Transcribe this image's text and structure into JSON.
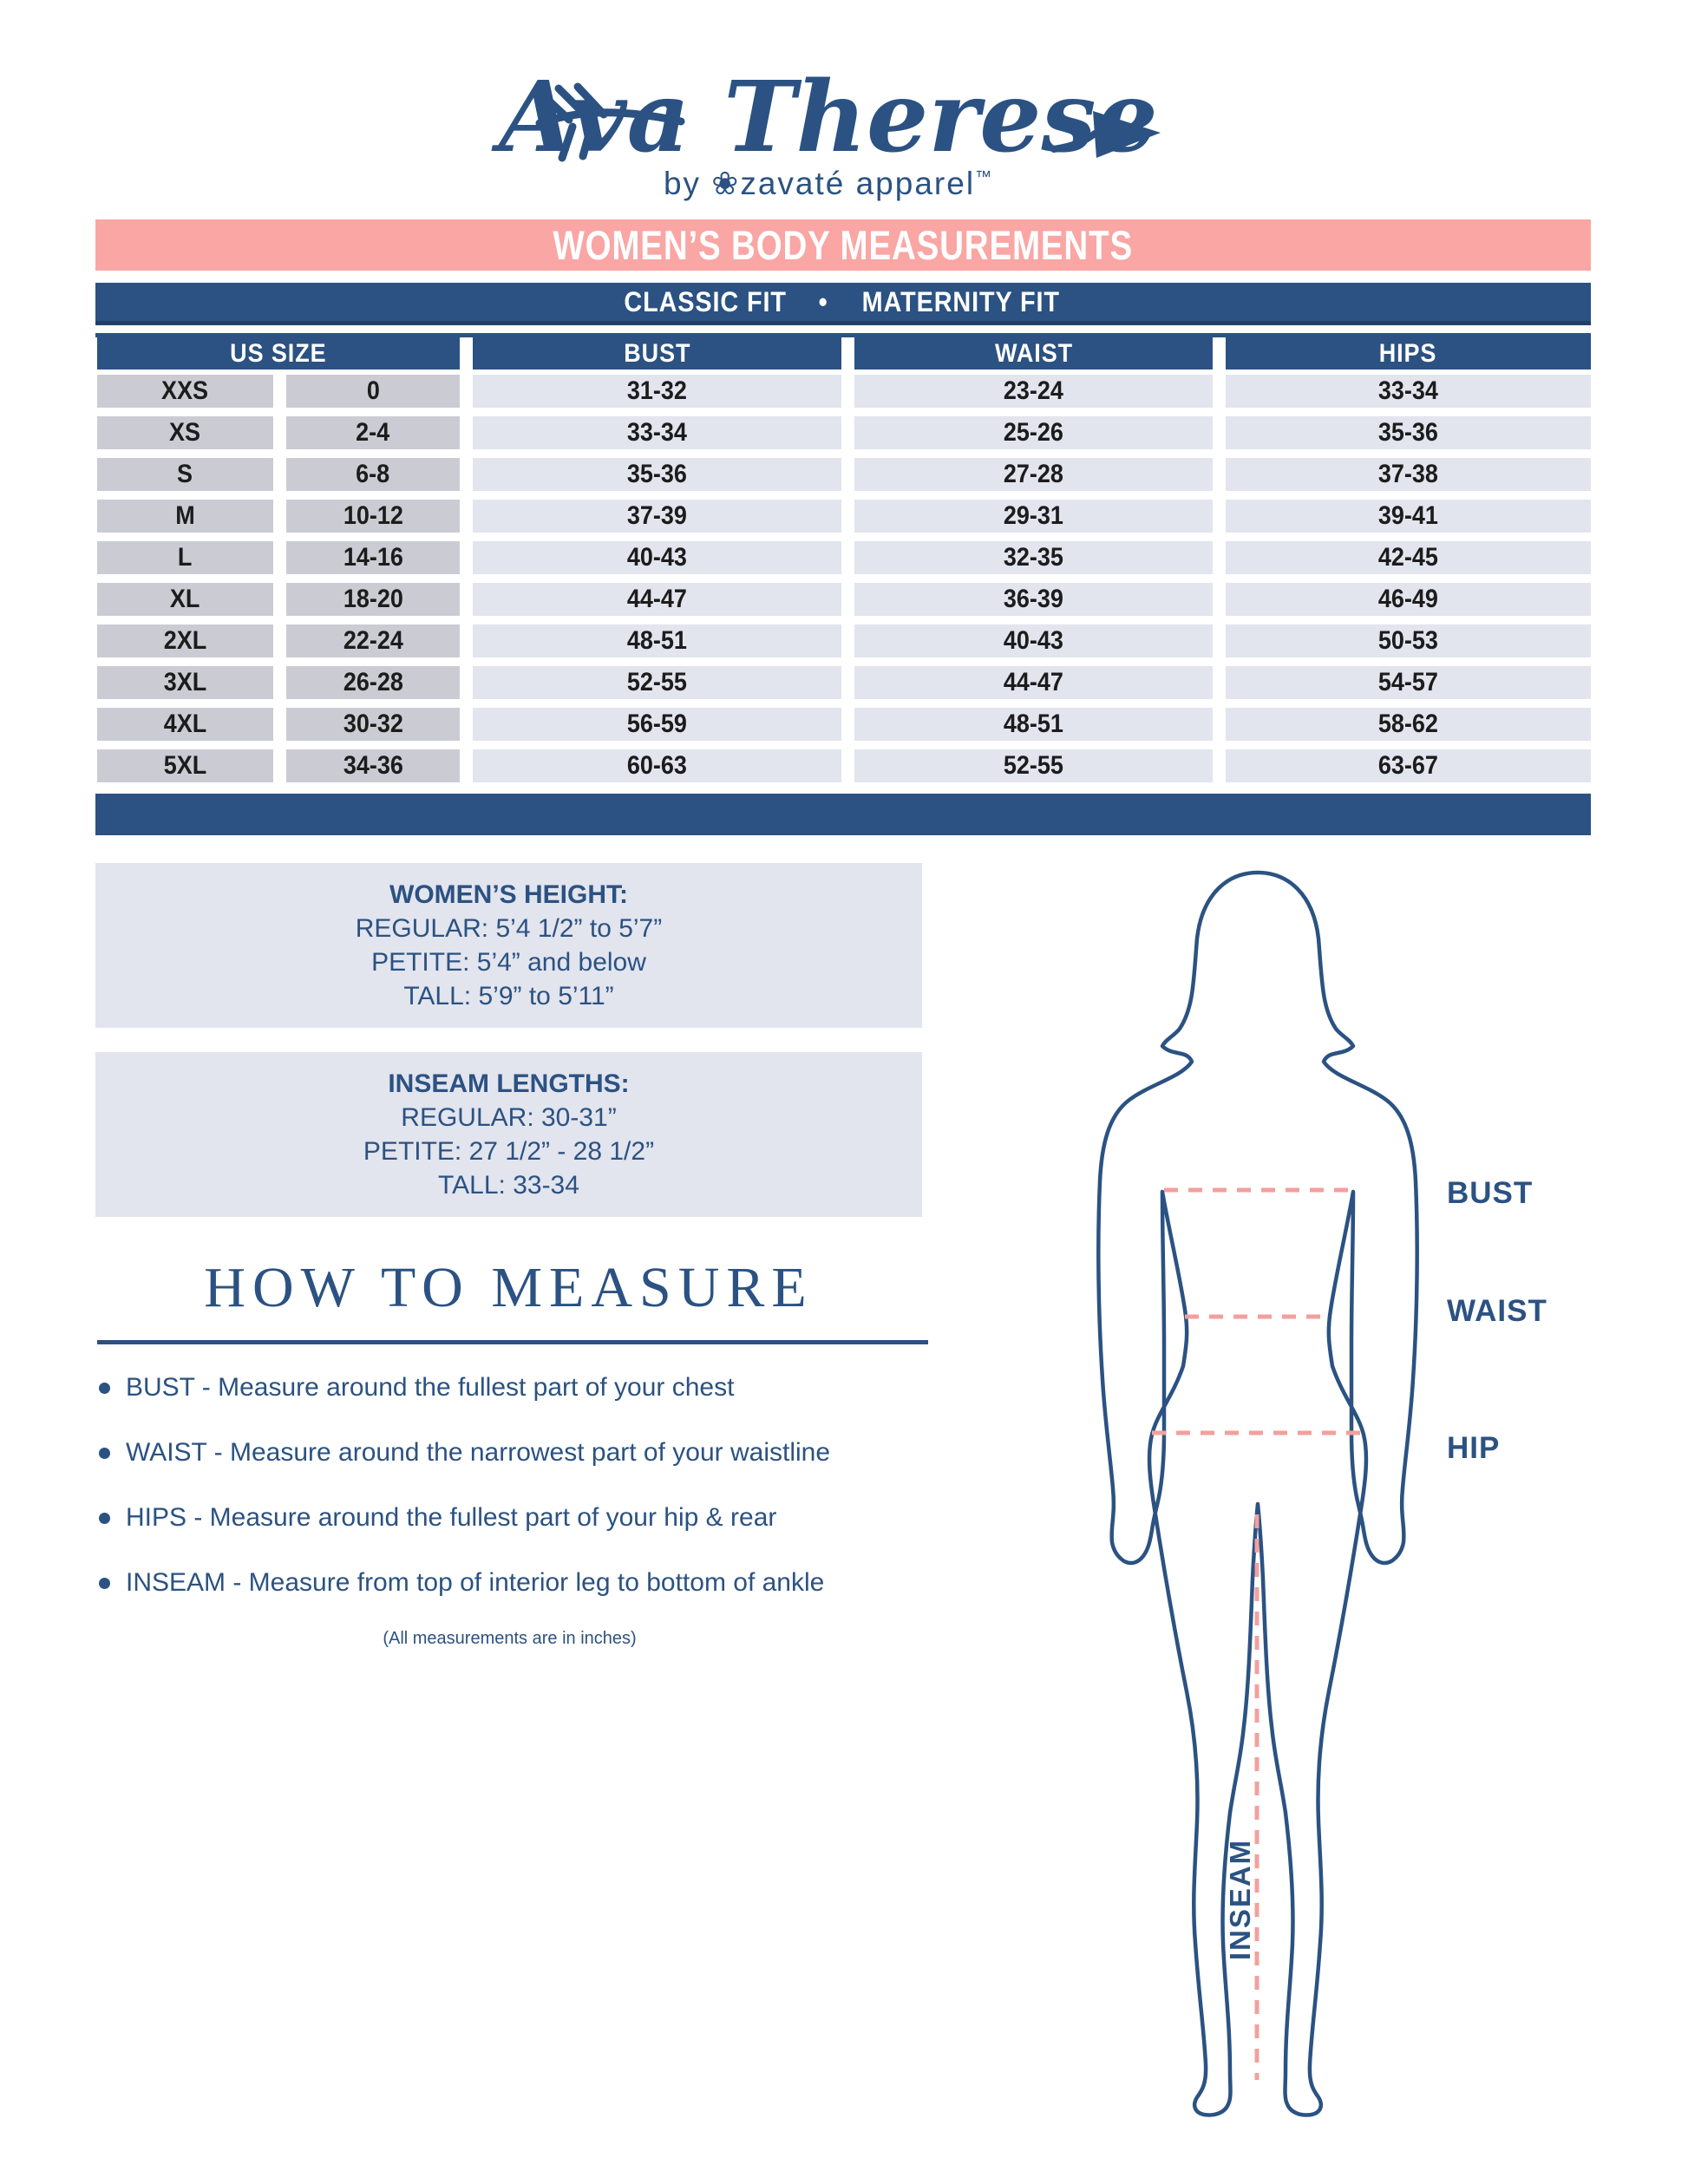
{
  "brand": {
    "name": "Ava Therese",
    "byline": "by",
    "flower": "❀",
    "company": "zavaté apparel",
    "trademark": "™"
  },
  "banner": {
    "title": "WOMEN’S BODY MEASUREMENTS"
  },
  "fit_banner": {
    "left": "CLASSIC FIT",
    "separator": "•",
    "right": "MATERNITY FIT"
  },
  "size_table": {
    "headers": {
      "us_size": "US SIZE",
      "bust": "BUST",
      "waist": "WAIST",
      "hips": "HIPS"
    },
    "rows": [
      {
        "size": "XXS",
        "us": "0",
        "bust": "31-32",
        "waist": "23-24",
        "hips": "33-34"
      },
      {
        "size": "XS",
        "us": "2-4",
        "bust": "33-34",
        "waist": "25-26",
        "hips": "35-36"
      },
      {
        "size": "S",
        "us": "6-8",
        "bust": "35-36",
        "waist": "27-28",
        "hips": "37-38"
      },
      {
        "size": "M",
        "us": "10-12",
        "bust": "37-39",
        "waist": "29-31",
        "hips": "39-41"
      },
      {
        "size": "L",
        "us": "14-16",
        "bust": "40-43",
        "waist": "32-35",
        "hips": "42-45"
      },
      {
        "size": "XL",
        "us": "18-20",
        "bust": "44-47",
        "waist": "36-39",
        "hips": "46-49"
      },
      {
        "size": "2XL",
        "us": "22-24",
        "bust": "48-51",
        "waist": "40-43",
        "hips": "50-53"
      },
      {
        "size": "3XL",
        "us": "26-28",
        "bust": "52-55",
        "waist": "44-47",
        "hips": "54-57"
      },
      {
        "size": "4XL",
        "us": "30-32",
        "bust": "56-59",
        "waist": "48-51",
        "hips": "58-62"
      },
      {
        "size": "5XL",
        "us": "34-36",
        "bust": "60-63",
        "waist": "52-55",
        "hips": "63-67"
      }
    ]
  },
  "height_box": {
    "title": "WOMEN’S HEIGHT:",
    "lines": [
      "REGULAR: 5’4 1/2” to 5’7”",
      "PETITE: 5’4” and below",
      "TALL: 5’9” to 5’11”"
    ]
  },
  "inseam_box": {
    "title": "INSEAM LENGTHS:",
    "lines": [
      "REGULAR: 30-31”",
      "PETITE: 27 1/2” - 28 1/2”",
      "TALL: 33-34"
    ]
  },
  "how_to_measure": {
    "title": "HOW TO MEASURE",
    "bullets": [
      "BUST - Measure around the fullest part of your chest",
      "WAIST - Measure around the narrowest part of your waistline",
      "HIPS - Measure around the fullest part of your hip & rear",
      "INSEAM - Measure from top of interior leg to bottom of ankle"
    ],
    "note": "(All measurements are in inches)"
  },
  "figure_labels": {
    "bust": "BUST",
    "waist": "WAIST",
    "hip": "HIP",
    "inseam": "INSEAM"
  },
  "colors": {
    "navy": "#2b5282",
    "pink": "#f9a6a4",
    "dash_pink": "#f2a09d",
    "cell_gray": "#cbccd3",
    "cell_lav": "#e2e4ee",
    "box_bg": "#e2e4ee",
    "ink": "#1c1c1c"
  }
}
